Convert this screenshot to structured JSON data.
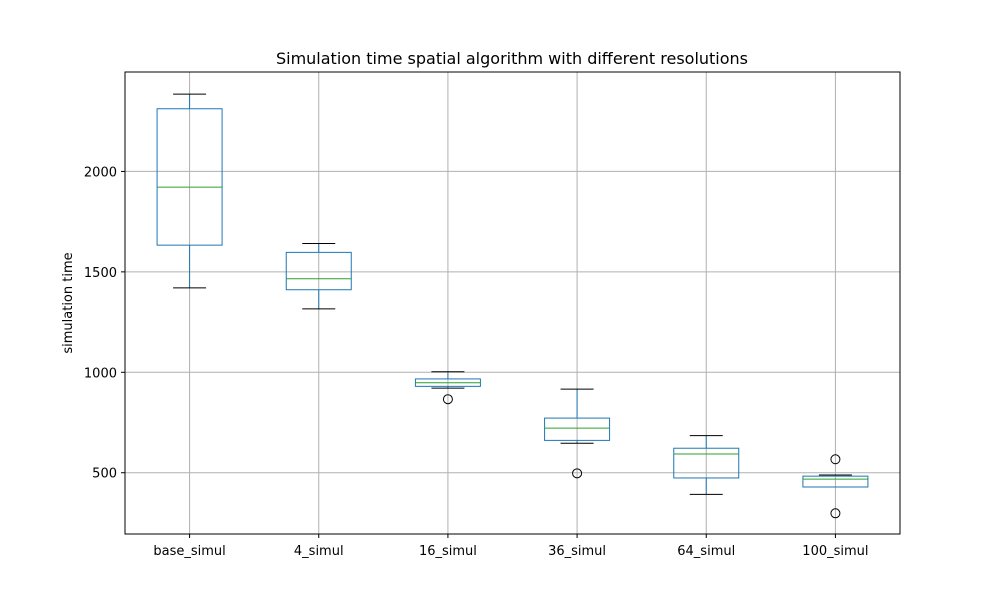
{
  "chart_data": {
    "type": "box",
    "title": "Simulation time spatial algorithm with different resolutions",
    "xlabel": "",
    "ylabel": "simulation time",
    "categories": [
      "base_simul",
      "4_simul",
      "16_simul",
      "36_simul",
      "64_simul",
      "100_simul"
    ],
    "yticks": [
      500,
      1000,
      1500,
      2000
    ],
    "ylim": [
      195,
      2495
    ],
    "grid": true,
    "boxes": [
      {
        "whisker_low": 1420,
        "q1": 1633,
        "median": 1922,
        "q3": 2312,
        "whisker_high": 2385,
        "outliers": []
      },
      {
        "whisker_low": 1316,
        "q1": 1411,
        "median": 1466,
        "q3": 1597,
        "whisker_high": 1641,
        "outliers": []
      },
      {
        "whisker_low": 921,
        "q1": 930,
        "median": 948,
        "q3": 967,
        "whisker_high": 1003,
        "outliers": [
          866
        ]
      },
      {
        "whisker_low": 647,
        "q1": 661,
        "median": 722,
        "q3": 772,
        "whisker_high": 916,
        "outliers": [
          497
        ]
      },
      {
        "whisker_low": 392,
        "q1": 474,
        "median": 593,
        "q3": 622,
        "whisker_high": 685,
        "outliers": []
      },
      {
        "whisker_low": 429,
        "q1": 429,
        "median": 468,
        "q3": 483,
        "whisker_high": 489,
        "outliers": [
          567,
          298
        ]
      }
    ],
    "colors": {
      "box": "#1f77b4",
      "median": "#2ca02c",
      "whisker_cap": "#000000",
      "outlier": "#000000",
      "grid": "#b0b0b0"
    }
  }
}
